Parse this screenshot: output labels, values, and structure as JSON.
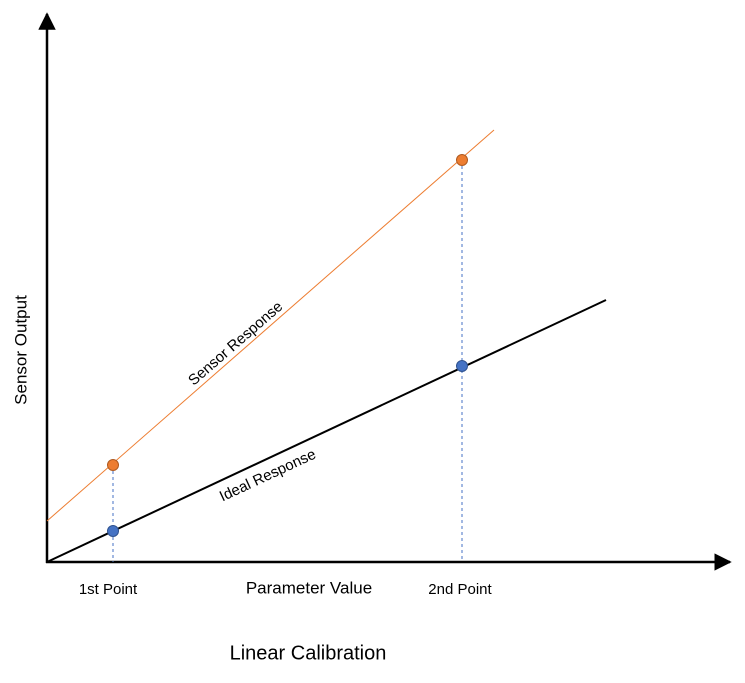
{
  "axes": {
    "y_label": "Sensor Output",
    "x_label": "Parameter Value"
  },
  "points": [
    {
      "label": "1st Point"
    },
    {
      "label": "2nd Point"
    }
  ],
  "lines": [
    {
      "label": "Sensor Response"
    },
    {
      "label": "Ideal Response"
    }
  ],
  "caption": "Linear Calibration"
}
